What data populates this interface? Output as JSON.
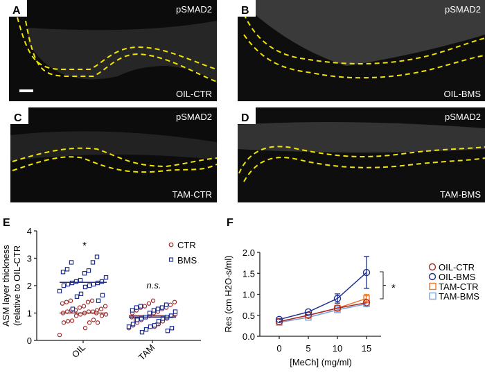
{
  "micro_panels": [
    {
      "letter": "A",
      "stain": "pSMAD2",
      "condition": "OIL-CTR",
      "scale_bar": true
    },
    {
      "letter": "B",
      "stain": "pSMAD2",
      "condition": "OIL-BMS",
      "scale_bar": false
    },
    {
      "letter": "C",
      "stain": "pSMAD2",
      "condition": "TAM-CTR",
      "scale_bar": false
    },
    {
      "letter": "D",
      "stain": "pSMAD2",
      "condition": "TAM-BMS",
      "scale_bar": false
    }
  ],
  "chart_data": [
    {
      "panel": "E",
      "type": "scatter",
      "ylabel_line1": "ASM layer thickness",
      "ylabel_line2": "(relative to OIL-CTR",
      "categories": [
        "OIL",
        "TAM"
      ],
      "ylim": [
        0,
        4
      ],
      "yticks": [
        "0",
        "1",
        "2",
        "3",
        "4"
      ],
      "legend": [
        {
          "name": "CTR",
          "marker": "circle",
          "color": "#a52a2a"
        },
        {
          "name": "BMS",
          "marker": "square",
          "color": "#1f2f8f"
        }
      ],
      "legend_position": "top-right",
      "annotations": {
        "OIL": "*",
        "TAM": "n.s."
      },
      "series": [
        {
          "name": "CTR",
          "color": "#a52a2a",
          "groups": {
            "OIL": [
              0.2,
              0.45,
              0.65,
              0.65,
              0.7,
              0.75,
              0.72,
              0.65,
              0.9,
              0.9,
              0.95,
              0.95,
              1.0,
              1.0,
              1.05,
              1.05,
              1.05,
              1.1,
              1.1,
              1.1,
              1.15,
              1.2,
              1.25,
              1.25,
              1.35,
              1.4,
              1.4,
              1.45,
              1.45,
              1.0
            ],
            "TAM": [
              0.45,
              0.5,
              0.55,
              0.6,
              0.65,
              0.7,
              0.75,
              0.8,
              0.85,
              0.9,
              0.9,
              0.95,
              1.0,
              1.0,
              1.05,
              1.1,
              1.15,
              1.2,
              1.2,
              1.25,
              1.3,
              1.35,
              1.4,
              1.45,
              0.85,
              0.6,
              0.75
            ]
          },
          "means": {
            "OIL": 1.0,
            "TAM": 0.9
          }
        },
        {
          "name": "BMS",
          "color": "#1f2f8f",
          "groups": {
            "OIL": [
              1.15,
              1.45,
              1.6,
              1.65,
              1.7,
              1.8,
              1.95,
              2.0,
              2.0,
              2.05,
              2.05,
              2.1,
              2.1,
              2.15,
              2.15,
              2.2,
              2.3,
              2.45,
              2.5,
              2.55,
              2.6,
              2.85,
              2.85,
              3.05
            ],
            "TAM": [
              0.3,
              0.35,
              0.4,
              0.45,
              0.5,
              0.5,
              0.55,
              0.6,
              0.7,
              0.75,
              0.8,
              0.8,
              0.85,
              0.85,
              0.9,
              1.0,
              1.05,
              1.1,
              1.1,
              1.15,
              1.2,
              1.2,
              1.25,
              1.3
            ]
          },
          "means": {
            "OIL": 2.12,
            "TAM": 0.85
          }
        }
      ]
    },
    {
      "panel": "F",
      "type": "line",
      "xlabel": "[MeCh] (mg/ml)",
      "ylabel": "Res (cm H2O-s/ml)",
      "x": [
        0,
        5,
        10,
        15
      ],
      "xticks": [
        "0",
        "5",
        "10",
        "15"
      ],
      "ylim": [
        0,
        2.0
      ],
      "yticks": [
        "0.0",
        "0.5",
        "1.0",
        "1.5",
        "2.0"
      ],
      "legend_position": "right",
      "significance": "*",
      "series": [
        {
          "name": "OIL-CTR",
          "marker": "circle",
          "color": "#a52a2a",
          "values": [
            0.35,
            0.5,
            0.67,
            0.8
          ],
          "error": [
            0.02,
            0.03,
            0.04,
            0.04
          ]
        },
        {
          "name": "OIL-BMS",
          "marker": "circle",
          "color": "#1f2f8f",
          "values": [
            0.4,
            0.58,
            0.9,
            1.52
          ],
          "error": [
            0.02,
            0.03,
            0.11,
            0.38
          ]
        },
        {
          "name": "TAM-CTR",
          "marker": "square",
          "color": "#e8782c",
          "values": [
            0.35,
            0.5,
            0.67,
            0.9
          ],
          "error": [
            0.02,
            0.03,
            0.04,
            0.1
          ]
        },
        {
          "name": "TAM-BMS",
          "marker": "square",
          "color": "#7aa0e0",
          "values": [
            0.33,
            0.45,
            0.63,
            0.77
          ],
          "error": [
            0.02,
            0.03,
            0.03,
            0.04
          ]
        }
      ]
    }
  ]
}
